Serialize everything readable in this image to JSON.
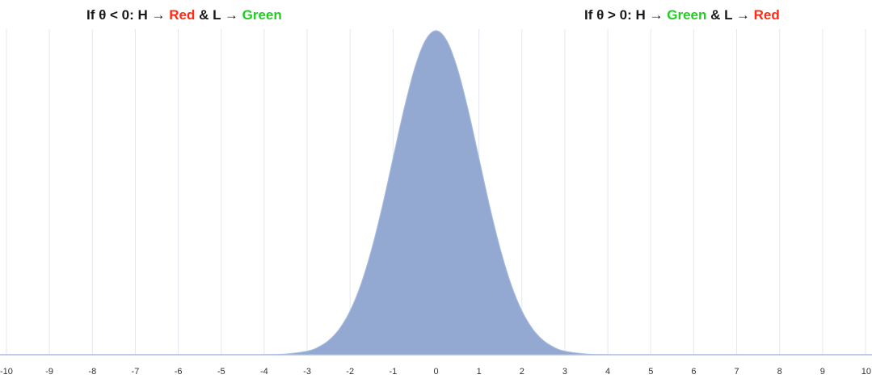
{
  "annotations": {
    "left": {
      "prefix": "If θ < 0: H → ",
      "first": "Red",
      "middle": " & L → ",
      "second": "Green"
    },
    "right": {
      "prefix": "If θ > 0: H → ",
      "first": "Green",
      "middle": " & L → ",
      "second": "Red"
    }
  },
  "colors": {
    "fill": "#93a9d2",
    "grid": "#e3e7ef",
    "baseline": "#a9bde0",
    "red": "#ff2a12",
    "green": "#1fce1f"
  },
  "chart_data": {
    "type": "area",
    "title": "",
    "xlabel": "",
    "ylabel": "",
    "xlim": [
      -10,
      10
    ],
    "ylim": [
      0,
      0.4
    ],
    "grid": true,
    "x_ticks": [
      -10,
      -9,
      -8,
      -7,
      -6,
      -5,
      -4,
      -3,
      -2,
      -1,
      0,
      1,
      2,
      3,
      4,
      5,
      6,
      7,
      8,
      9,
      10
    ],
    "series": [
      {
        "x": [
          -10,
          -5,
          -4,
          -3.5,
          -3,
          -2.75,
          -2.5,
          -2.25,
          -2,
          -1.75,
          -1.5,
          -1.25,
          -1,
          -0.75,
          -0.5,
          -0.25,
          0,
          0.25,
          0.5,
          0.75,
          1,
          1.25,
          1.5,
          1.75,
          2,
          2.25,
          2.5,
          2.75,
          3,
          3.5,
          4,
          5,
          10
        ],
        "y": [
          0,
          0,
          0.0001,
          0.0009,
          0.0044,
          0.0091,
          0.0175,
          0.0317,
          0.054,
          0.0863,
          0.1295,
          0.1826,
          0.242,
          0.3011,
          0.3521,
          0.3867,
          0.3989,
          0.3867,
          0.3521,
          0.3011,
          0.242,
          0.1826,
          0.1295,
          0.0863,
          0.054,
          0.0317,
          0.0175,
          0.0091,
          0.0044,
          0.0009,
          0.0001,
          0,
          0
        ]
      }
    ]
  }
}
